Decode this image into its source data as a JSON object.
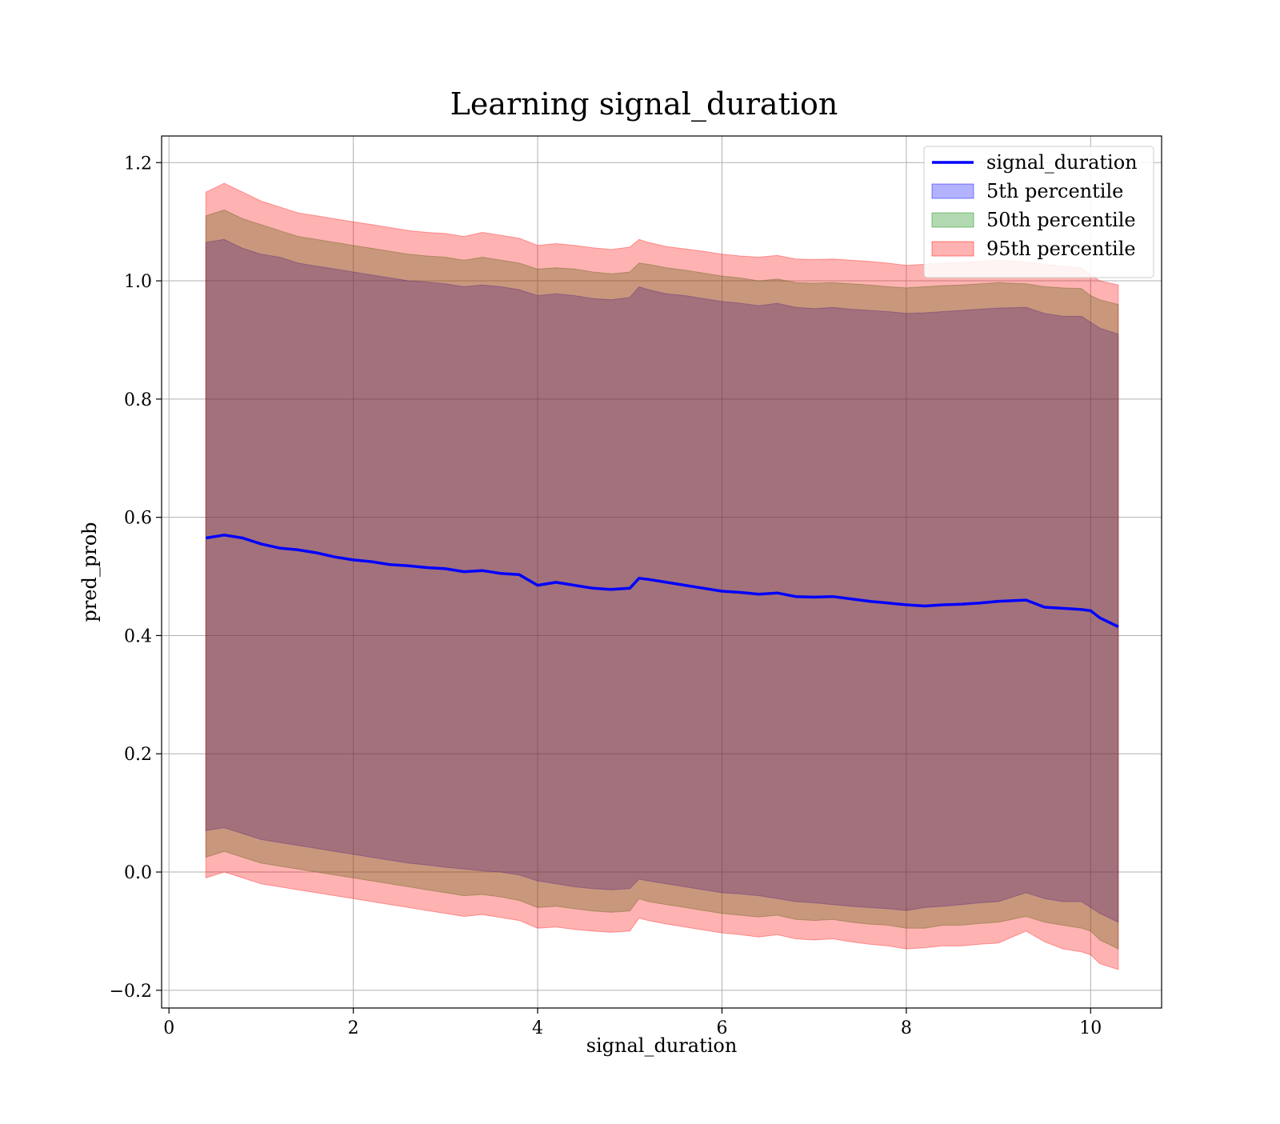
{
  "chart_data": {
    "type": "line",
    "title": "Learning signal_duration",
    "xlabel": "signal_duration",
    "ylabel": "pred_prob",
    "xlim": [
      -0.08,
      10.77
    ],
    "ylim": [
      -0.23,
      1.245
    ],
    "xticks": [
      0,
      2,
      4,
      6,
      8,
      10
    ],
    "xtick_labels": [
      "0",
      "2",
      "4",
      "6",
      "8",
      "10"
    ],
    "yticks": [
      -0.2,
      0.0,
      0.2,
      0.4,
      0.6,
      0.8,
      1.0,
      1.2
    ],
    "ytick_labels": [
      "−0.2",
      "0.0",
      "0.2",
      "0.4",
      "0.6",
      "0.8",
      "1.0",
      "1.2"
    ],
    "grid": true,
    "legend_position": "top-right",
    "x": [
      0.4,
      0.6,
      0.8,
      1.0,
      1.2,
      1.4,
      1.6,
      1.8,
      2.0,
      2.2,
      2.4,
      2.6,
      2.8,
      3.0,
      3.2,
      3.4,
      3.6,
      3.8,
      4.0,
      4.2,
      4.4,
      4.6,
      4.8,
      5.0,
      5.1,
      5.2,
      5.4,
      5.6,
      5.8,
      6.0,
      6.2,
      6.4,
      6.6,
      6.8,
      7.0,
      7.2,
      7.4,
      7.6,
      7.8,
      8.0,
      8.2,
      8.4,
      8.6,
      8.8,
      9.0,
      9.3,
      9.5,
      9.7,
      9.9,
      10.0,
      10.1,
      10.3
    ],
    "series": [
      {
        "name": "signal_duration",
        "kind": "line",
        "color": "#0000ff",
        "values": [
          0.565,
          0.57,
          0.565,
          0.555,
          0.548,
          0.545,
          0.54,
          0.533,
          0.528,
          0.525,
          0.52,
          0.518,
          0.515,
          0.513,
          0.508,
          0.51,
          0.505,
          0.503,
          0.485,
          0.49,
          0.485,
          0.48,
          0.478,
          0.48,
          0.497,
          0.495,
          0.49,
          0.485,
          0.48,
          0.475,
          0.473,
          0.47,
          0.472,
          0.466,
          0.465,
          0.466,
          0.462,
          0.458,
          0.455,
          0.452,
          0.45,
          0.452,
          0.453,
          0.455,
          0.458,
          0.46,
          0.448,
          0.446,
          0.444,
          0.442,
          0.43,
          0.415
        ]
      },
      {
        "name": "5th percentile",
        "kind": "band",
        "color": "#0000ff",
        "opacity": 0.3,
        "lower": [
          0.07,
          0.075,
          0.065,
          0.055,
          0.05,
          0.045,
          0.04,
          0.035,
          0.03,
          0.025,
          0.02,
          0.015,
          0.012,
          0.008,
          0.005,
          0.002,
          0.0,
          -0.005,
          -0.015,
          -0.02,
          -0.025,
          -0.028,
          -0.03,
          -0.028,
          -0.012,
          -0.015,
          -0.02,
          -0.025,
          -0.03,
          -0.035,
          -0.037,
          -0.04,
          -0.045,
          -0.05,
          -0.052,
          -0.055,
          -0.058,
          -0.06,
          -0.062,
          -0.065,
          -0.06,
          -0.058,
          -0.055,
          -0.052,
          -0.05,
          -0.035,
          -0.045,
          -0.05,
          -0.05,
          -0.06,
          -0.07,
          -0.085
        ],
        "upper": [
          1.065,
          1.07,
          1.055,
          1.045,
          1.04,
          1.03,
          1.025,
          1.02,
          1.015,
          1.01,
          1.005,
          1.0,
          0.998,
          0.995,
          0.99,
          0.993,
          0.99,
          0.985,
          0.975,
          0.978,
          0.975,
          0.97,
          0.968,
          0.972,
          0.99,
          0.985,
          0.978,
          0.975,
          0.97,
          0.965,
          0.962,
          0.958,
          0.962,
          0.955,
          0.953,
          0.955,
          0.952,
          0.95,
          0.948,
          0.945,
          0.946,
          0.948,
          0.95,
          0.952,
          0.954,
          0.955,
          0.945,
          0.94,
          0.94,
          0.93,
          0.92,
          0.91
        ]
      },
      {
        "name": "50th percentile",
        "kind": "band",
        "color": "#008000",
        "opacity": 0.3,
        "lower": [
          0.025,
          0.035,
          0.025,
          0.015,
          0.01,
          0.005,
          0.0,
          -0.005,
          -0.01,
          -0.015,
          -0.02,
          -0.025,
          -0.03,
          -0.035,
          -0.04,
          -0.038,
          -0.042,
          -0.048,
          -0.06,
          -0.058,
          -0.062,
          -0.066,
          -0.068,
          -0.066,
          -0.045,
          -0.05,
          -0.055,
          -0.06,
          -0.065,
          -0.07,
          -0.073,
          -0.076,
          -0.073,
          -0.08,
          -0.082,
          -0.08,
          -0.085,
          -0.088,
          -0.09,
          -0.095,
          -0.095,
          -0.09,
          -0.09,
          -0.087,
          -0.085,
          -0.075,
          -0.085,
          -0.09,
          -0.095,
          -0.1,
          -0.115,
          -0.13
        ],
        "upper": [
          1.11,
          1.12,
          1.105,
          1.095,
          1.085,
          1.075,
          1.07,
          1.065,
          1.06,
          1.055,
          1.05,
          1.045,
          1.042,
          1.04,
          1.035,
          1.04,
          1.035,
          1.03,
          1.02,
          1.022,
          1.02,
          1.015,
          1.012,
          1.015,
          1.03,
          1.028,
          1.022,
          1.018,
          1.013,
          1.008,
          1.005,
          1.0,
          1.003,
          0.997,
          0.996,
          0.997,
          0.995,
          0.993,
          0.99,
          0.988,
          0.99,
          0.992,
          0.993,
          0.995,
          0.997,
          0.995,
          0.99,
          0.988,
          0.987,
          0.975,
          0.968,
          0.96
        ]
      },
      {
        "name": "95th percentile",
        "kind": "band",
        "color": "#ff0000",
        "opacity": 0.3,
        "lower": [
          -0.01,
          0.0,
          -0.01,
          -0.02,
          -0.025,
          -0.03,
          -0.035,
          -0.04,
          -0.045,
          -0.05,
          -0.055,
          -0.06,
          -0.065,
          -0.07,
          -0.075,
          -0.072,
          -0.077,
          -0.082,
          -0.095,
          -0.093,
          -0.097,
          -0.1,
          -0.102,
          -0.1,
          -0.078,
          -0.082,
          -0.088,
          -0.093,
          -0.098,
          -0.103,
          -0.106,
          -0.11,
          -0.106,
          -0.113,
          -0.115,
          -0.113,
          -0.118,
          -0.122,
          -0.125,
          -0.13,
          -0.128,
          -0.125,
          -0.125,
          -0.122,
          -0.12,
          -0.1,
          -0.118,
          -0.13,
          -0.135,
          -0.14,
          -0.155,
          -0.165
        ],
        "upper": [
          1.15,
          1.165,
          1.15,
          1.135,
          1.125,
          1.115,
          1.11,
          1.105,
          1.1,
          1.095,
          1.09,
          1.085,
          1.082,
          1.08,
          1.075,
          1.082,
          1.077,
          1.072,
          1.06,
          1.063,
          1.06,
          1.056,
          1.053,
          1.057,
          1.07,
          1.065,
          1.058,
          1.054,
          1.05,
          1.045,
          1.042,
          1.04,
          1.043,
          1.037,
          1.036,
          1.037,
          1.035,
          1.033,
          1.03,
          1.026,
          1.028,
          1.03,
          1.031,
          1.033,
          1.035,
          1.032,
          1.028,
          1.025,
          1.022,
          1.01,
          1.0,
          0.993
        ]
      }
    ]
  }
}
